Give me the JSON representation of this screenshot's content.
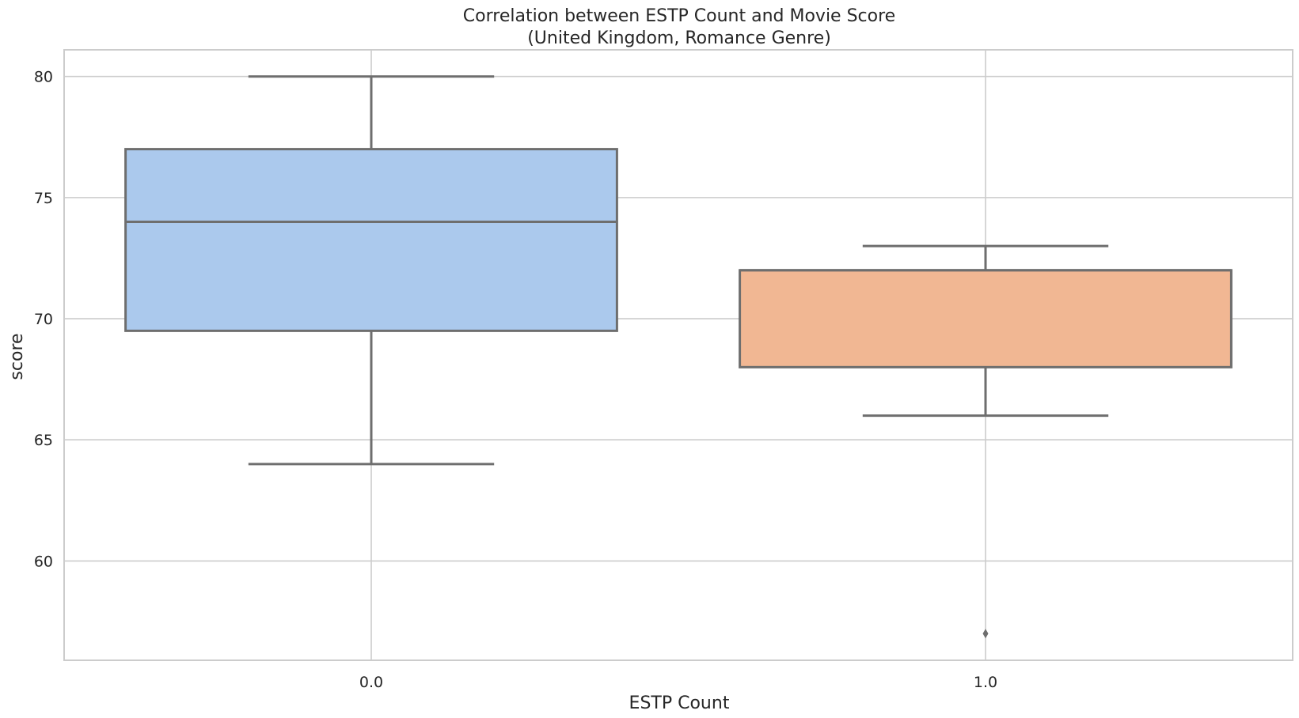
{
  "chart_data": {
    "type": "box",
    "title": "Correlation between ESTP Count and Movie Score",
    "subtitle": "(United Kingdom, Romance Genre)",
    "xlabel": "ESTP Count",
    "ylabel": "score",
    "ylim": [
      55.9,
      81.1
    ],
    "yticks": [
      60,
      65,
      70,
      75,
      80
    ],
    "grid": true,
    "categories": [
      "0.0",
      "1.0"
    ],
    "boxes": [
      {
        "category": "0.0",
        "whisker_low": 64,
        "q1": 69.5,
        "median": 74,
        "q3": 77,
        "whisker_high": 80,
        "outliers": [],
        "color": "#abc9ed"
      },
      {
        "category": "1.0",
        "whisker_low": 66,
        "q1": 68,
        "median": 72,
        "q3": 72,
        "whisker_high": 73,
        "outliers": [
          57
        ],
        "color": "#f1b793"
      }
    ],
    "line_color": "#6e6e6e",
    "grid_color": "#cccccc"
  }
}
